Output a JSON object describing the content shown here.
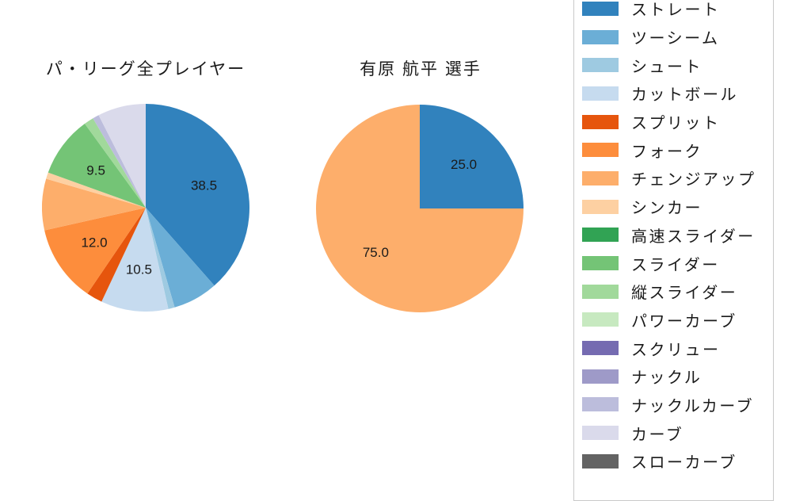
{
  "page": {
    "background_color": "#ffffff",
    "text_color": "#1a1a1a"
  },
  "chart_data": [
    {
      "type": "pie",
      "title": "パ・リーグ全プレイヤー",
      "start_angle": "top",
      "direction": "clockwise",
      "label_radius_ratio": 0.6,
      "slices": [
        {
          "name": "ストレート",
          "value": 38.5,
          "color": "#3182bd",
          "label": "38.5"
        },
        {
          "name": "ツーシーム",
          "value": 7.0,
          "color": "#6baed6",
          "label": null
        },
        {
          "name": "シュート",
          "value": 1.0,
          "color": "#9ecae1",
          "label": null
        },
        {
          "name": "カットボール",
          "value": 10.5,
          "color": "#c6dbef",
          "label": "10.5"
        },
        {
          "name": "スプリット",
          "value": 2.5,
          "color": "#e6550d",
          "label": null
        },
        {
          "name": "フォーク",
          "value": 12.0,
          "color": "#fd8d3c",
          "label": "12.0"
        },
        {
          "name": "チェンジアップ",
          "value": 8.0,
          "color": "#fdae6b",
          "label": null
        },
        {
          "name": "シンカー",
          "value": 1.0,
          "color": "#fdd0a2",
          "label": null
        },
        {
          "name": "スライダー",
          "value": 9.5,
          "color": "#74c476",
          "label": "9.5"
        },
        {
          "name": "縦スライダー",
          "value": 1.5,
          "color": "#a1d99b",
          "label": null
        },
        {
          "name": "ナックルカーブ",
          "value": 1.0,
          "color": "#bcbddc",
          "label": null
        },
        {
          "name": "カーブ",
          "value": 7.5,
          "color": "#dadaeb",
          "label": null
        }
      ]
    },
    {
      "type": "pie",
      "title": "有原 航平 選手",
      "start_angle": "top",
      "direction": "clockwise",
      "label_radius_ratio": 0.6,
      "slices": [
        {
          "name": "ストレート",
          "value": 25.0,
          "color": "#3182bd",
          "label": "25.0"
        },
        {
          "name": "チェンジアップ",
          "value": 75.0,
          "color": "#fdae6b",
          "label": "75.0"
        }
      ]
    }
  ],
  "legend": {
    "position": "right",
    "border_color": "#c9c9c9",
    "items": [
      {
        "label": "ストレート",
        "color": "#3182bd"
      },
      {
        "label": "ツーシーム",
        "color": "#6baed6"
      },
      {
        "label": "シュート",
        "color": "#9ecae1"
      },
      {
        "label": "カットボール",
        "color": "#c6dbef"
      },
      {
        "label": "スプリット",
        "color": "#e6550d"
      },
      {
        "label": "フォーク",
        "color": "#fd8d3c"
      },
      {
        "label": "チェンジアップ",
        "color": "#fdae6b"
      },
      {
        "label": "シンカー",
        "color": "#fdd0a2"
      },
      {
        "label": "高速スライダー",
        "color": "#31a354"
      },
      {
        "label": "スライダー",
        "color": "#74c476"
      },
      {
        "label": "縦スライダー",
        "color": "#a1d99b"
      },
      {
        "label": "パワーカーブ",
        "color": "#c7e9c0"
      },
      {
        "label": "スクリュー",
        "color": "#756bb1"
      },
      {
        "label": "ナックル",
        "color": "#9e9ac8"
      },
      {
        "label": "ナックルカーブ",
        "color": "#bcbddc"
      },
      {
        "label": "カーブ",
        "color": "#dadaeb"
      },
      {
        "label": "スローカーブ",
        "color": "#636363"
      }
    ]
  }
}
